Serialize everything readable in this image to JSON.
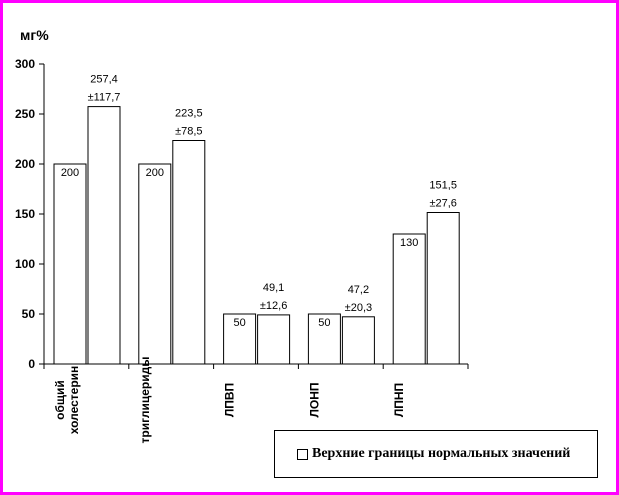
{
  "chart_data": {
    "type": "bar",
    "unit": "мг%",
    "ylim": [
      0,
      300
    ],
    "yticks": [
      "0",
      "50",
      "100",
      "150",
      "200",
      "250",
      "300"
    ],
    "grid": false,
    "legend_placement": "bottom-right",
    "categories": [
      "общий\nхолестерин",
      "триглицериды",
      "ЛПВП",
      "ЛОНП",
      "ЛПНП"
    ],
    "series": [
      {
        "name": "Верхние границы нормальных значений",
        "values": [
          200,
          200,
          50,
          50,
          130
        ],
        "labels": [
          "200",
          "200",
          "50",
          "50",
          "130"
        ],
        "color": "#ffffff"
      },
      {
        "values": [
          257.4,
          223.5,
          49.1,
          47.2,
          151.5
        ],
        "labels": [
          "257,4\n±117,7",
          "223,5\n±78,5",
          "49,1\n±12,6",
          "47,2\n±20,3",
          "151,5\n±27,6"
        ],
        "color": "#ffffff"
      }
    ]
  },
  "legend": {
    "label": "Верхние границы нормальных значений"
  },
  "frame_color": "#ff00ff"
}
